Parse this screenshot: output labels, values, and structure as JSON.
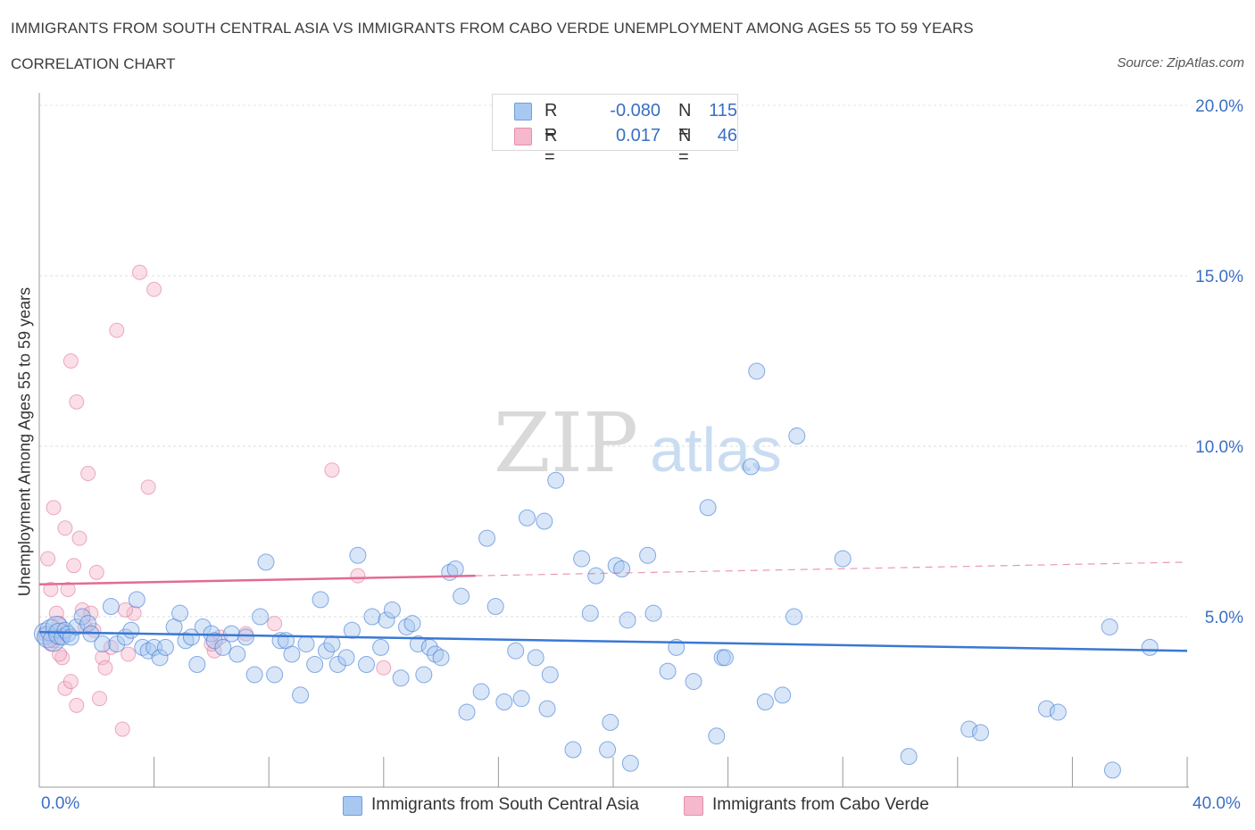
{
  "title": "IMMIGRANTS FROM SOUTH CENTRAL ASIA VS IMMIGRANTS FROM CABO VERDE UNEMPLOYMENT AMONG AGES 55 TO 59 YEARS",
  "subtitle": "CORRELATION CHART",
  "source": "Source: ZipAtlas.com",
  "watermark": {
    "zip": "ZIP",
    "atlas": "atlas"
  },
  "legend": {
    "blue": {
      "r_label": "R =",
      "r_value": "-0.080",
      "n_label": "N =",
      "n_value": "115"
    },
    "pink": {
      "r_label": "R =",
      "r_value": "0.017",
      "n_label": "N =",
      "n_value": "46"
    }
  },
  "colors": {
    "blue": "#3a78d4",
    "blue_fill": "#a8c8f0",
    "pink": "#e06c96",
    "pink_fill": "#f5b8cc",
    "accent_text": "#3a6fc4"
  },
  "chart_data": {
    "type": "scatter",
    "title": "IMMIGRANTS FROM SOUTH CENTRAL ASIA VS IMMIGRANTS FROM CABO VERDE UNEMPLOYMENT AMONG AGES 55 TO 59 YEARS",
    "xlabel": "",
    "ylabel": "Unemployment Among Ages 55 to 59 years",
    "xlim": [
      0,
      40
    ],
    "ylim": [
      0,
      20
    ],
    "x_tick_labels": [
      "0.0%",
      "40.0%"
    ],
    "y_ticks": [
      5,
      10,
      15,
      20
    ],
    "y_tick_labels": [
      "5.0%",
      "10.0%",
      "15.0%",
      "20.0%"
    ],
    "series": [
      {
        "name": "Immigrants from South Central Asia",
        "color": "#3a78d4",
        "trend": {
          "x0": 0,
          "y0": 4.55,
          "x1": 40,
          "y1": 4.0
        },
        "points": [
          [
            0.2,
            4.5
          ],
          [
            0.3,
            4.4
          ],
          [
            0.4,
            4.6
          ],
          [
            0.5,
            4.3
          ],
          [
            0.6,
            4.7
          ],
          [
            0.7,
            4.5
          ],
          [
            0.8,
            4.4
          ],
          [
            0.9,
            4.6
          ],
          [
            1.0,
            4.5
          ],
          [
            1.1,
            4.4
          ],
          [
            1.3,
            4.7
          ],
          [
            1.5,
            5.0
          ],
          [
            1.7,
            4.8
          ],
          [
            1.8,
            4.5
          ],
          [
            2.2,
            4.2
          ],
          [
            2.5,
            5.3
          ],
          [
            2.7,
            4.2
          ],
          [
            3.0,
            4.4
          ],
          [
            3.2,
            4.6
          ],
          [
            3.4,
            5.5
          ],
          [
            3.6,
            4.1
          ],
          [
            3.8,
            4.0
          ],
          [
            4.0,
            4.1
          ],
          [
            4.2,
            3.8
          ],
          [
            4.4,
            4.1
          ],
          [
            4.7,
            4.7
          ],
          [
            4.9,
            5.1
          ],
          [
            5.1,
            4.3
          ],
          [
            5.3,
            4.4
          ],
          [
            5.5,
            3.6
          ],
          [
            5.7,
            4.7
          ],
          [
            6.0,
            4.5
          ],
          [
            6.1,
            4.3
          ],
          [
            6.4,
            4.1
          ],
          [
            6.7,
            4.5
          ],
          [
            6.9,
            3.9
          ],
          [
            7.2,
            4.4
          ],
          [
            7.5,
            3.3
          ],
          [
            7.7,
            5.0
          ],
          [
            7.9,
            6.6
          ],
          [
            8.2,
            3.3
          ],
          [
            8.4,
            4.3
          ],
          [
            8.6,
            4.3
          ],
          [
            8.8,
            3.9
          ],
          [
            9.1,
            2.7
          ],
          [
            9.3,
            4.2
          ],
          [
            9.6,
            3.6
          ],
          [
            9.8,
            5.5
          ],
          [
            10.0,
            4.0
          ],
          [
            10.2,
            4.2
          ],
          [
            10.4,
            3.6
          ],
          [
            10.7,
            3.8
          ],
          [
            10.9,
            4.6
          ],
          [
            11.1,
            6.8
          ],
          [
            11.4,
            3.6
          ],
          [
            11.6,
            5.0
          ],
          [
            11.9,
            4.1
          ],
          [
            12.1,
            4.9
          ],
          [
            12.3,
            5.2
          ],
          [
            12.6,
            3.2
          ],
          [
            12.8,
            4.7
          ],
          [
            13.0,
            4.8
          ],
          [
            13.2,
            4.2
          ],
          [
            13.4,
            3.3
          ],
          [
            13.6,
            4.1
          ],
          [
            13.8,
            3.9
          ],
          [
            14.0,
            3.8
          ],
          [
            14.3,
            6.3
          ],
          [
            14.5,
            6.4
          ],
          [
            14.7,
            5.6
          ],
          [
            14.9,
            2.2
          ],
          [
            15.4,
            2.8
          ],
          [
            15.6,
            7.3
          ],
          [
            15.9,
            5.3
          ],
          [
            16.2,
            2.5
          ],
          [
            16.6,
            4.0
          ],
          [
            16.8,
            2.6
          ],
          [
            17.0,
            7.9
          ],
          [
            17.3,
            3.8
          ],
          [
            17.6,
            7.8
          ],
          [
            17.7,
            2.3
          ],
          [
            17.8,
            3.3
          ],
          [
            18.0,
            9.0
          ],
          [
            18.6,
            1.1
          ],
          [
            18.9,
            6.7
          ],
          [
            19.2,
            5.1
          ],
          [
            19.4,
            6.2
          ],
          [
            19.8,
            1.1
          ],
          [
            19.9,
            1.9
          ],
          [
            20.1,
            6.5
          ],
          [
            20.3,
            6.4
          ],
          [
            20.5,
            4.9
          ],
          [
            20.6,
            0.7
          ],
          [
            21.2,
            6.8
          ],
          [
            21.4,
            5.1
          ],
          [
            21.9,
            3.4
          ],
          [
            22.2,
            4.1
          ],
          [
            22.8,
            3.1
          ],
          [
            23.3,
            8.2
          ],
          [
            23.6,
            1.5
          ],
          [
            23.8,
            3.8
          ],
          [
            23.9,
            3.8
          ],
          [
            24.8,
            9.4
          ],
          [
            25.0,
            12.2
          ],
          [
            25.3,
            2.5
          ],
          [
            25.9,
            2.7
          ],
          [
            26.3,
            5.0
          ],
          [
            26.4,
            10.3
          ],
          [
            28.0,
            6.7
          ],
          [
            30.3,
            0.9
          ],
          [
            32.4,
            1.7
          ],
          [
            32.8,
            1.6
          ],
          [
            35.1,
            2.3
          ],
          [
            35.5,
            2.2
          ],
          [
            37.3,
            4.7
          ],
          [
            37.4,
            0.5
          ],
          [
            38.7,
            4.1
          ]
        ]
      },
      {
        "name": "Immigrants from Cabo Verde",
        "color": "#e06c96",
        "trend": {
          "x0": 0,
          "y0": 5.95,
          "x1": 15.2,
          "y1": 6.2,
          "dash_to_x": 40,
          "dash_to_y": 6.6
        },
        "points": [
          [
            0.2,
            4.5
          ],
          [
            0.3,
            6.7
          ],
          [
            0.4,
            5.8
          ],
          [
            0.5,
            8.2
          ],
          [
            0.6,
            5.1
          ],
          [
            0.7,
            4.8
          ],
          [
            0.8,
            3.8
          ],
          [
            0.9,
            7.6
          ],
          [
            1.0,
            5.8
          ],
          [
            1.1,
            12.5
          ],
          [
            1.2,
            6.5
          ],
          [
            1.3,
            11.3
          ],
          [
            1.4,
            7.3
          ],
          [
            1.5,
            5.2
          ],
          [
            1.6,
            4.7
          ],
          [
            1.7,
            9.2
          ],
          [
            1.9,
            4.6
          ],
          [
            2.0,
            6.3
          ],
          [
            2.1,
            2.6
          ],
          [
            2.2,
            3.8
          ],
          [
            2.3,
            3.5
          ],
          [
            2.5,
            4.1
          ],
          [
            2.7,
            13.4
          ],
          [
            2.9,
            1.7
          ],
          [
            3.1,
            3.9
          ],
          [
            3.3,
            5.1
          ],
          [
            3.5,
            15.1
          ],
          [
            3.8,
            8.8
          ],
          [
            4.0,
            14.6
          ],
          [
            6.1,
            4.0
          ],
          [
            6.3,
            4.4
          ],
          [
            7.2,
            4.5
          ],
          [
            8.2,
            4.8
          ],
          [
            10.2,
            9.3
          ],
          [
            11.1,
            6.2
          ],
          [
            12.0,
            3.5
          ],
          [
            0.4,
            4.2
          ],
          [
            0.9,
            2.9
          ],
          [
            1.1,
            3.1
          ],
          [
            1.8,
            5.1
          ],
          [
            0.6,
            4.4
          ],
          [
            3.0,
            5.2
          ],
          [
            1.3,
            2.4
          ],
          [
            0.7,
            3.9
          ],
          [
            0.5,
            4.3
          ],
          [
            6.0,
            4.2
          ]
        ]
      }
    ]
  },
  "bottom_legend": {
    "blue_label": "Immigrants from South Central Asia",
    "pink_label": "Immigrants from Cabo Verde"
  }
}
